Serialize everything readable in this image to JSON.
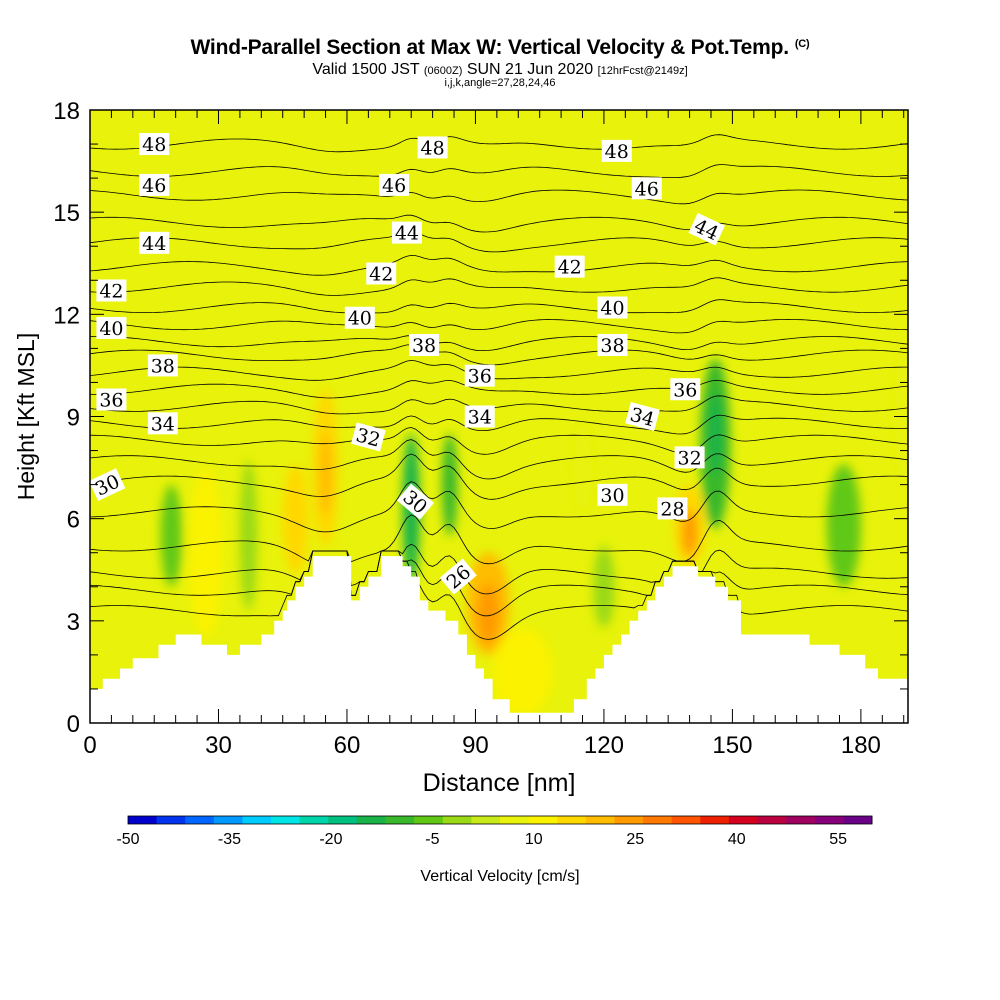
{
  "title": "Wind-Parallel Section at Max W: Vertical Velocity & Pot.Temp.",
  "copyright": "(C)",
  "subtitle_valid": "Valid 1500 JST",
  "subtitle_utc": "(0600Z)",
  "subtitle_date": "SUN 21 Jun 2020",
  "subtitle_fcst": "[12hrFcst@2149z]",
  "subtitle_grid": "i,j,k,angle=27,28,24,46",
  "colorbar": {
    "label": "Vertical Velocity [cm/s]",
    "tick_labels": [
      "-50",
      "-35",
      "-20",
      "-5",
      "10",
      "25",
      "40",
      "55"
    ],
    "tick_values": [
      -50,
      -35,
      -20,
      -5,
      10,
      25,
      40,
      55
    ],
    "range": [
      -50,
      60
    ],
    "colors": [
      "#0000cc",
      "#0033ee",
      "#0066ff",
      "#0099ff",
      "#00ccff",
      "#00e5e5",
      "#00d4aa",
      "#00c080",
      "#19b34a",
      "#38b82a",
      "#60c814",
      "#9ad916",
      "#c8ea1a",
      "#e8f20a",
      "#fbf200",
      "#ffd800",
      "#ffbc00",
      "#ff9a00",
      "#ff7800",
      "#ff5400",
      "#ee2000",
      "#d40020",
      "#bb0040",
      "#a00060",
      "#86007a",
      "#6a0088"
    ]
  },
  "chart_data": {
    "type": "heatmap",
    "xlabel": "Distance [nm]",
    "ylabel": "Height [Kft MSL]",
    "xlim": [
      0,
      191
    ],
    "ylim": [
      0,
      18
    ],
    "xticks": [
      0,
      30,
      60,
      90,
      120,
      150,
      180
    ],
    "yticks": [
      0,
      3,
      6,
      9,
      12,
      15,
      18
    ],
    "background_value_cm_s": 5,
    "terrain_kft": [
      [
        0,
        1.0
      ],
      [
        3,
        1.0
      ],
      [
        3,
        1.3
      ],
      [
        7,
        1.3
      ],
      [
        7,
        1.6
      ],
      [
        10,
        1.6
      ],
      [
        10,
        1.9
      ],
      [
        16,
        1.9
      ],
      [
        16,
        2.3
      ],
      [
        20,
        2.3
      ],
      [
        20,
        2.6
      ],
      [
        26,
        2.6
      ],
      [
        26,
        2.3
      ],
      [
        32,
        2.3
      ],
      [
        32,
        2.0
      ],
      [
        35,
        2.0
      ],
      [
        35,
        2.3
      ],
      [
        40,
        2.3
      ],
      [
        40,
        2.6
      ],
      [
        43,
        2.6
      ],
      [
        43,
        3.0
      ],
      [
        45,
        3.0
      ],
      [
        45,
        3.3
      ],
      [
        46,
        3.3
      ],
      [
        46,
        3.6
      ],
      [
        48,
        3.6
      ],
      [
        48,
        4.0
      ],
      [
        50,
        4.0
      ],
      [
        50,
        4.3
      ],
      [
        52,
        4.3
      ],
      [
        52,
        4.9
      ],
      [
        61,
        4.9
      ],
      [
        61,
        3.6
      ],
      [
        63,
        3.6
      ],
      [
        63,
        4.0
      ],
      [
        65,
        4.0
      ],
      [
        65,
        4.3
      ],
      [
        68,
        4.3
      ],
      [
        68,
        4.9
      ],
      [
        73,
        4.9
      ],
      [
        73,
        4.6
      ],
      [
        75,
        4.6
      ],
      [
        75,
        4.3
      ],
      [
        77,
        4.3
      ],
      [
        77,
        3.6
      ],
      [
        79,
        3.6
      ],
      [
        79,
        3.3
      ],
      [
        83,
        3.3
      ],
      [
        83,
        3.0
      ],
      [
        86,
        3.0
      ],
      [
        86,
        2.6
      ],
      [
        88,
        2.6
      ],
      [
        88,
        2.0
      ],
      [
        90,
        2.0
      ],
      [
        90,
        1.6
      ],
      [
        92,
        1.6
      ],
      [
        92,
        1.3
      ],
      [
        94,
        1.3
      ],
      [
        94,
        0.7
      ],
      [
        98,
        0.7
      ],
      [
        98,
        0.3
      ],
      [
        113,
        0.3
      ],
      [
        113,
        0.7
      ],
      [
        116,
        0.7
      ],
      [
        116,
        1.3
      ],
      [
        118,
        1.3
      ],
      [
        118,
        1.6
      ],
      [
        120,
        1.6
      ],
      [
        120,
        2.0
      ],
      [
        122,
        2.0
      ],
      [
        122,
        2.3
      ],
      [
        124,
        2.3
      ],
      [
        124,
        2.6
      ],
      [
        126,
        2.6
      ],
      [
        126,
        3.0
      ],
      [
        128,
        3.0
      ],
      [
        128,
        3.3
      ],
      [
        130,
        3.3
      ],
      [
        130,
        3.6
      ],
      [
        132,
        3.6
      ],
      [
        132,
        4.0
      ],
      [
        134,
        4.0
      ],
      [
        134,
        4.3
      ],
      [
        136,
        4.3
      ],
      [
        136,
        4.6
      ],
      [
        142,
        4.6
      ],
      [
        142,
        4.3
      ],
      [
        146,
        4.3
      ],
      [
        146,
        4.0
      ],
      [
        149,
        4.0
      ],
      [
        149,
        3.6
      ],
      [
        152,
        3.6
      ],
      [
        152,
        2.6
      ],
      [
        168,
        2.6
      ],
      [
        168,
        2.3
      ],
      [
        175,
        2.3
      ],
      [
        175,
        2.0
      ],
      [
        181,
        2.0
      ],
      [
        181,
        1.6
      ],
      [
        184,
        1.6
      ],
      [
        184,
        1.3
      ],
      [
        191,
        1.3
      ]
    ],
    "updrafts": [
      {
        "x": 27,
        "y": 5.0,
        "rx": 4,
        "ry": 2.5,
        "w": 10
      },
      {
        "x": 28,
        "y": 5.0,
        "rx": 1.8,
        "ry": 1.8,
        "w": 12
      },
      {
        "x": 48,
        "y": 6.0,
        "rx": 3,
        "ry": 1.6,
        "w": 14
      },
      {
        "x": 55,
        "y": 7.5,
        "rx": 3,
        "ry": 2.3,
        "w": 15
      },
      {
        "x": 55,
        "y": 7.3,
        "rx": 1.5,
        "ry": 1.2,
        "w": 18
      },
      {
        "x": 93,
        "y": 3.5,
        "rx": 5,
        "ry": 1.5,
        "w": 20
      },
      {
        "x": 93,
        "y": 3.2,
        "rx": 2.5,
        "ry": 0.9,
        "w": 24
      },
      {
        "x": 101,
        "y": 1.5,
        "rx": 7,
        "ry": 1.3,
        "w": 10
      },
      {
        "x": 115,
        "y": 7.5,
        "rx": 2,
        "ry": 1.3,
        "w": 9
      },
      {
        "x": 140,
        "y": 5.8,
        "rx": 3.5,
        "ry": 1.2,
        "w": 17
      },
      {
        "x": 140,
        "y": 5.6,
        "rx": 1.8,
        "ry": 0.7,
        "w": 25
      },
      {
        "x": 190,
        "y": 9.0,
        "rx": 2,
        "ry": 2.0,
        "w": 9
      }
    ],
    "downdrafts": [
      {
        "x": 19,
        "y": 5.5,
        "rx": 2.5,
        "ry": 1.5,
        "w": -5
      },
      {
        "x": 37,
        "y": 5.5,
        "rx": 2,
        "ry": 2.2,
        "w": -3
      },
      {
        "x": 75,
        "y": 6.3,
        "rx": 2,
        "ry": 2.2,
        "w": -12
      },
      {
        "x": 84,
        "y": 7.0,
        "rx": 1.8,
        "ry": 1.5,
        "w": -10
      },
      {
        "x": 146,
        "y": 8.2,
        "rx": 3.5,
        "ry": 2.5,
        "w": -9
      },
      {
        "x": 146,
        "y": 8.5,
        "rx": 1.5,
        "ry": 1.2,
        "w": -14
      },
      {
        "x": 176,
        "y": 5.8,
        "rx": 4,
        "ry": 1.8,
        "w": -4
      },
      {
        "x": 120,
        "y": 4.0,
        "rx": 2.5,
        "ry": 1.2,
        "w": -3
      }
    ],
    "contour_base_kft": [
      {
        "theta": 26,
        "y": 3.3
      },
      {
        "theta": 27,
        "y": 3.9
      },
      {
        "theta": 28,
        "y": 4.4
      },
      {
        "theta": 29,
        "y": 5.2
      },
      {
        "theta": 30,
        "y": 6.2
      },
      {
        "theta": 31,
        "y": 7.1
      },
      {
        "theta": 32,
        "y": 7.7
      },
      {
        "theta": 33,
        "y": 8.3
      },
      {
        "theta": 34,
        "y": 8.8
      },
      {
        "theta": 35,
        "y": 9.3
      },
      {
        "theta": 36,
        "y": 9.8
      },
      {
        "theta": 37,
        "y": 10.3
      },
      {
        "theta": 38,
        "y": 10.8
      },
      {
        "theta": 39,
        "y": 11.2
      },
      {
        "theta": 40,
        "y": 11.7
      },
      {
        "theta": 41,
        "y": 12.2
      },
      {
        "theta": 42,
        "y": 12.8
      },
      {
        "theta": 43,
        "y": 13.4
      },
      {
        "theta": 44,
        "y": 14.1
      },
      {
        "theta": 45,
        "y": 14.7
      },
      {
        "theta": 46,
        "y": 15.5
      },
      {
        "theta": 47,
        "y": 16.2
      },
      {
        "theta": 48,
        "y": 17.0
      }
    ],
    "contour_labels": [
      {
        "text": "48",
        "x": 15,
        "y": 17.0,
        "rot": 0
      },
      {
        "text": "48",
        "x": 80,
        "y": 16.9,
        "rot": 0
      },
      {
        "text": "48",
        "x": 123,
        "y": 16.8,
        "rot": 0
      },
      {
        "text": "46",
        "x": 15,
        "y": 15.8,
        "rot": 0
      },
      {
        "text": "46",
        "x": 71,
        "y": 15.8,
        "rot": 0
      },
      {
        "text": "46",
        "x": 130,
        "y": 15.7,
        "rot": 0
      },
      {
        "text": "44",
        "x": 15,
        "y": 14.1,
        "rot": 0
      },
      {
        "text": "44",
        "x": 74,
        "y": 14.4,
        "rot": 0
      },
      {
        "text": "44",
        "x": 144,
        "y": 14.5,
        "rot": 25
      },
      {
        "text": "42",
        "x": 5,
        "y": 12.7,
        "rot": 0
      },
      {
        "text": "42",
        "x": 68,
        "y": 13.2,
        "rot": 0
      },
      {
        "text": "42",
        "x": 112,
        "y": 13.4,
        "rot": 0
      },
      {
        "text": "40",
        "x": 5,
        "y": 11.6,
        "rot": 0
      },
      {
        "text": "40",
        "x": 63,
        "y": 11.9,
        "rot": 0
      },
      {
        "text": "40",
        "x": 122,
        "y": 12.2,
        "rot": 0
      },
      {
        "text": "38",
        "x": 17,
        "y": 10.5,
        "rot": 0
      },
      {
        "text": "38",
        "x": 78,
        "y": 11.1,
        "rot": 0
      },
      {
        "text": "38",
        "x": 122,
        "y": 11.1,
        "rot": 0
      },
      {
        "text": "36",
        "x": 5,
        "y": 9.5,
        "rot": 0
      },
      {
        "text": "36",
        "x": 91,
        "y": 10.2,
        "rot": 0
      },
      {
        "text": "36",
        "x": 139,
        "y": 9.8,
        "rot": 0
      },
      {
        "text": "34",
        "x": 17,
        "y": 8.8,
        "rot": 0
      },
      {
        "text": "34",
        "x": 91,
        "y": 9.0,
        "rot": 0
      },
      {
        "text": "34",
        "x": 129,
        "y": 9.0,
        "rot": 15
      },
      {
        "text": "32",
        "x": 65,
        "y": 8.4,
        "rot": 15
      },
      {
        "text": "32",
        "x": 140,
        "y": 7.8,
        "rot": 0
      },
      {
        "text": "30",
        "x": 4,
        "y": 7.0,
        "rot": -25
      },
      {
        "text": "30",
        "x": 76,
        "y": 6.5,
        "rot": 40
      },
      {
        "text": "30",
        "x": 122,
        "y": 6.7,
        "rot": 0
      },
      {
        "text": "28",
        "x": 136,
        "y": 6.3,
        "rot": 0
      },
      {
        "text": "26",
        "x": 86,
        "y": 4.3,
        "rot": -40
      }
    ],
    "grid": false
  }
}
